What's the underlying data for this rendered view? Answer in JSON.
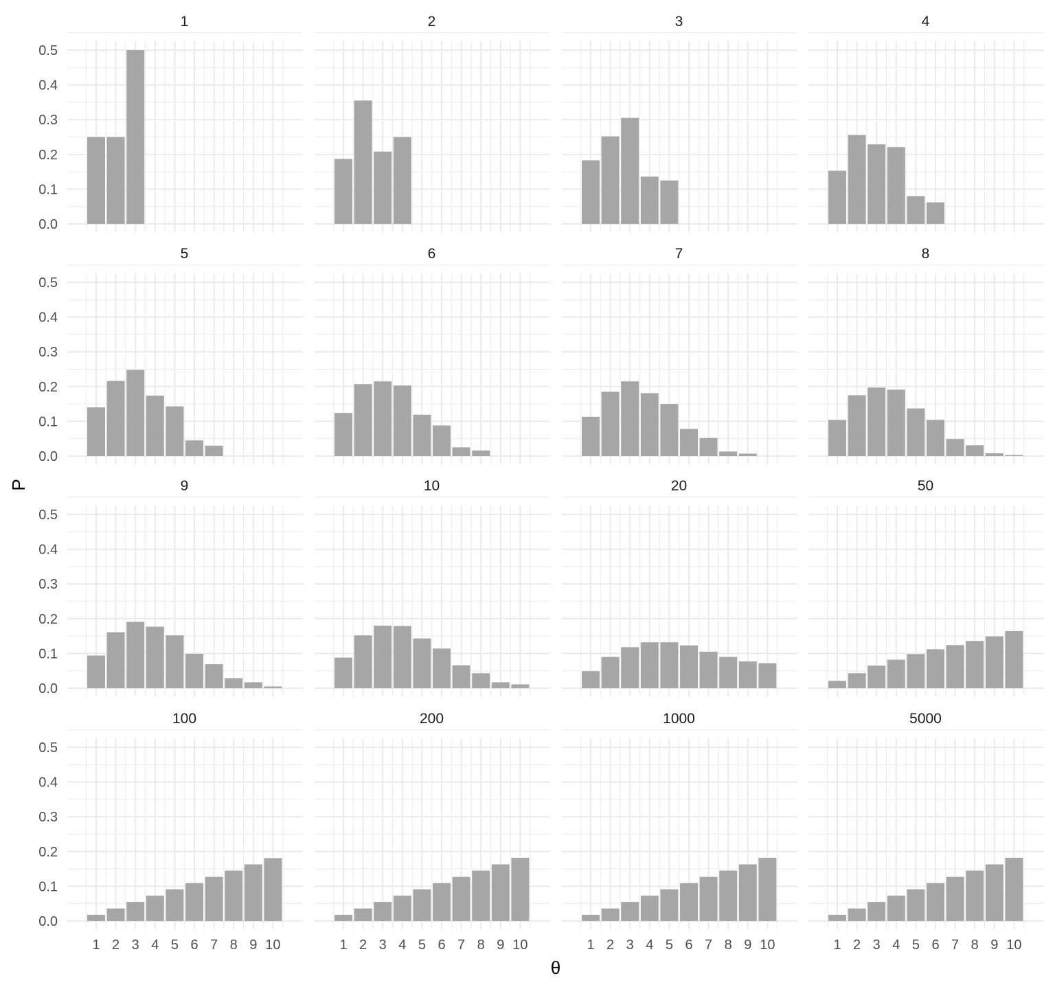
{
  "chart_data": {
    "type": "bar",
    "layout": "facet_wrap 4x4",
    "xlabel": "θ",
    "ylabel": "P",
    "x_ticks": [
      "1",
      "2",
      "3",
      "4",
      "5",
      "6",
      "7",
      "8",
      "9",
      "10"
    ],
    "y_ticks": [
      "0.0",
      "0.1",
      "0.2",
      "0.3",
      "0.4",
      "0.5"
    ],
    "ylim": [
      0,
      0.5
    ],
    "xlim": [
      0.5,
      10.5
    ],
    "grid": true,
    "bar_color": "#a6a6a6",
    "panels": [
      {
        "label": "1",
        "x": [
          1,
          2,
          3
        ],
        "values": [
          0.25,
          0.25,
          0.5
        ]
      },
      {
        "label": "2",
        "x": [
          1,
          2,
          3,
          4
        ],
        "values": [
          0.187,
          0.355,
          0.208,
          0.25
        ]
      },
      {
        "label": "3",
        "x": [
          1,
          2,
          3,
          4,
          5
        ],
        "values": [
          0.183,
          0.252,
          0.305,
          0.136,
          0.125
        ]
      },
      {
        "label": "4",
        "x": [
          1,
          2,
          3,
          4,
          5,
          6
        ],
        "values": [
          0.153,
          0.256,
          0.229,
          0.221,
          0.08,
          0.062
        ]
      },
      {
        "label": "5",
        "x": [
          1,
          2,
          3,
          4,
          5,
          6,
          7
        ],
        "values": [
          0.14,
          0.216,
          0.248,
          0.174,
          0.143,
          0.045,
          0.03
        ]
      },
      {
        "label": "6",
        "x": [
          1,
          2,
          3,
          4,
          5,
          6,
          7,
          8
        ],
        "values": [
          0.124,
          0.207,
          0.215,
          0.203,
          0.119,
          0.088,
          0.025,
          0.016
        ]
      },
      {
        "label": "7",
        "x": [
          1,
          2,
          3,
          4,
          5,
          6,
          7,
          8,
          9
        ],
        "values": [
          0.113,
          0.185,
          0.215,
          0.181,
          0.15,
          0.078,
          0.052,
          0.013,
          0.007
        ]
      },
      {
        "label": "8",
        "x": [
          1,
          2,
          3,
          4,
          5,
          6,
          7,
          8,
          9,
          10
        ],
        "values": [
          0.104,
          0.175,
          0.197,
          0.191,
          0.137,
          0.104,
          0.049,
          0.031,
          0.008,
          0.003
        ]
      },
      {
        "label": "9",
        "x": [
          1,
          2,
          3,
          4,
          5,
          6,
          7,
          8,
          9,
          10
        ],
        "values": [
          0.094,
          0.161,
          0.191,
          0.177,
          0.152,
          0.099,
          0.069,
          0.029,
          0.017,
          0.005
        ]
      },
      {
        "label": "10",
        "x": [
          1,
          2,
          3,
          4,
          5,
          6,
          7,
          8,
          9,
          10
        ],
        "values": [
          0.088,
          0.152,
          0.18,
          0.179,
          0.143,
          0.114,
          0.066,
          0.043,
          0.017,
          0.011
        ]
      },
      {
        "label": "20",
        "x": [
          1,
          2,
          3,
          4,
          5,
          6,
          7,
          8,
          9,
          10
        ],
        "values": [
          0.049,
          0.09,
          0.118,
          0.132,
          0.132,
          0.123,
          0.105,
          0.09,
          0.077,
          0.072
        ]
      },
      {
        "label": "50",
        "x": [
          1,
          2,
          3,
          4,
          5,
          6,
          7,
          8,
          9,
          10
        ],
        "values": [
          0.021,
          0.043,
          0.065,
          0.082,
          0.098,
          0.112,
          0.124,
          0.136,
          0.149,
          0.164
        ]
      },
      {
        "label": "100",
        "x": [
          1,
          2,
          3,
          4,
          5,
          6,
          7,
          8,
          9,
          10
        ],
        "values": [
          0.018,
          0.036,
          0.055,
          0.073,
          0.091,
          0.109,
          0.127,
          0.145,
          0.163,
          0.181
        ]
      },
      {
        "label": "200",
        "x": [
          1,
          2,
          3,
          4,
          5,
          6,
          7,
          8,
          9,
          10
        ],
        "values": [
          0.018,
          0.036,
          0.055,
          0.073,
          0.091,
          0.109,
          0.127,
          0.145,
          0.163,
          0.182
        ]
      },
      {
        "label": "1000",
        "x": [
          1,
          2,
          3,
          4,
          5,
          6,
          7,
          8,
          9,
          10
        ],
        "values": [
          0.018,
          0.036,
          0.055,
          0.073,
          0.091,
          0.109,
          0.127,
          0.145,
          0.163,
          0.182
        ]
      },
      {
        "label": "5000",
        "x": [
          1,
          2,
          3,
          4,
          5,
          6,
          7,
          8,
          9,
          10
        ],
        "values": [
          0.018,
          0.036,
          0.055,
          0.073,
          0.091,
          0.109,
          0.127,
          0.145,
          0.163,
          0.182
        ]
      }
    ]
  }
}
